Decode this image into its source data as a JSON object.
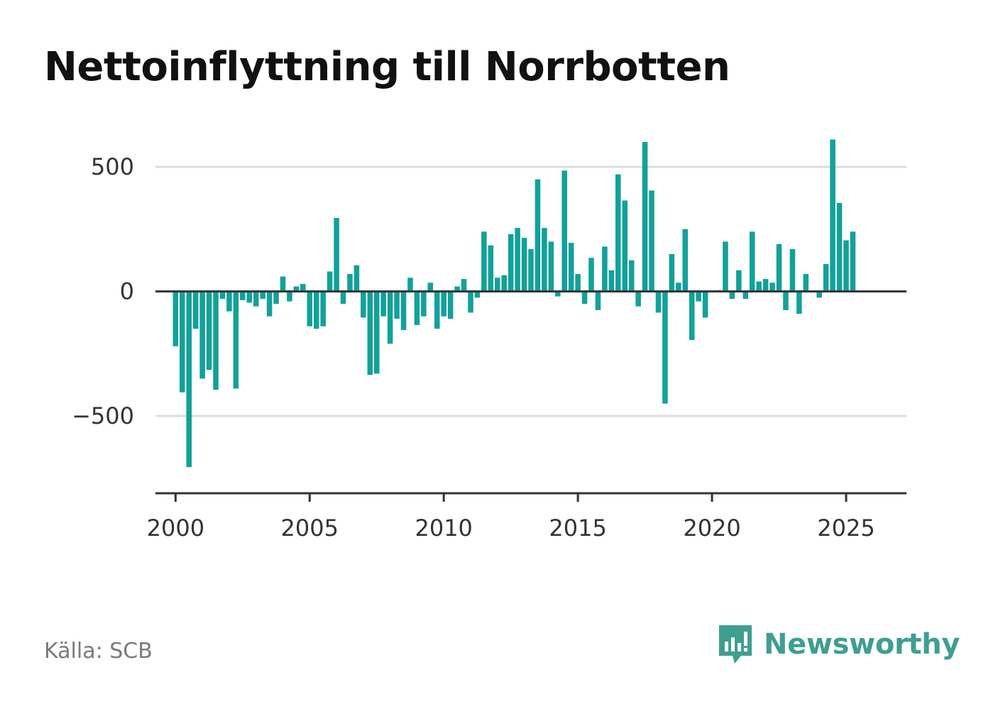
{
  "title": "Nettoinflyttning till Norrbotten",
  "source": "Källa: SCB",
  "brand": {
    "name": "Newsworthy",
    "icon": "newsworthy-logo-icon",
    "color": "#3f9e92"
  },
  "chart_data": {
    "type": "bar",
    "title": "Nettoinflyttning till Norrbotten",
    "xlabel": "",
    "ylabel": "",
    "bar_color": "#12a19a",
    "xlim": [
      1999.25,
      2027.25
    ],
    "ylim": [
      -810,
      600
    ],
    "x_ticks": [
      {
        "value": 2000,
        "label": "2000"
      },
      {
        "value": 2005,
        "label": "2005"
      },
      {
        "value": 2010,
        "label": "2010"
      },
      {
        "value": 2015,
        "label": "2015"
      },
      {
        "value": 2020,
        "label": "2020"
      },
      {
        "value": 2025,
        "label": "2025"
      }
    ],
    "y_ticks": [
      {
        "value": 500,
        "label": "500"
      },
      {
        "value": 0,
        "label": "0"
      },
      {
        "value": -500,
        "label": "−500"
      }
    ],
    "grid": true,
    "start_year": 2000,
    "periods_per_year": 4,
    "values": [
      -220,
      -405,
      -705,
      -150,
      -350,
      -315,
      -395,
      -30,
      -80,
      -390,
      -35,
      -45,
      -60,
      -30,
      -100,
      -50,
      60,
      -40,
      20,
      30,
      -140,
      -150,
      -140,
      80,
      295,
      -50,
      70,
      105,
      -105,
      -335,
      -330,
      -100,
      -210,
      -110,
      -155,
      55,
      -135,
      -100,
      35,
      -150,
      -100,
      -110,
      20,
      50,
      -85,
      -25,
      240,
      185,
      55,
      65,
      230,
      255,
      215,
      170,
      450,
      255,
      200,
      -20,
      485,
      195,
      70,
      -50,
      135,
      -75,
      180,
      85,
      470,
      365,
      125,
      -60,
      600,
      405,
      -85,
      -450,
      150,
      35,
      250,
      -195,
      -40,
      -105,
      0,
      5,
      200,
      -30,
      85,
      -30,
      240,
      40,
      50,
      35,
      190,
      -75,
      170,
      -90,
      70,
      0,
      -25,
      110,
      610,
      355,
      205,
      240
    ]
  }
}
